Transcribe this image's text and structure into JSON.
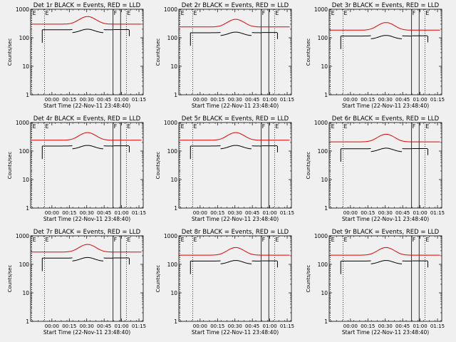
{
  "chart_data": {
    "type": "line",
    "ylabel": "Counts/sec",
    "xlabel": "Start Time (22-Nov-11 23:48:40)",
    "yscale": "log",
    "ylim": [
      1,
      1000
    ],
    "xlim_minutes": [
      -7,
      90
    ],
    "y_ticks": [
      {
        "v": 1,
        "label": "1"
      },
      {
        "v": 10,
        "label": "10"
      },
      {
        "v": 100,
        "label": "100"
      },
      {
        "v": 1000,
        "label": "1000"
      }
    ],
    "x_ticks": [
      {
        "v": 11.33,
        "label": "00:00"
      },
      {
        "v": 26.33,
        "label": "00:15"
      },
      {
        "v": 41.33,
        "label": "00:30"
      },
      {
        "v": 56.33,
        "label": "00:45"
      },
      {
        "v": 71.33,
        "label": "01:00"
      },
      {
        "v": 86.33,
        "label": "01:15"
      }
    ],
    "legend": [
      "BLACK = Events",
      "RED = LLD"
    ],
    "series_colors": {
      "events": "#000000",
      "lld": "#e00000"
    },
    "markers": [
      {
        "label": "E",
        "t": -6,
        "style": "dotted"
      },
      {
        "label": "E",
        "t": 5,
        "style": "dotted"
      },
      {
        "label": "F",
        "t": 64,
        "style": "solid"
      },
      {
        "label": "E",
        "t": 75.5,
        "style": "dotted"
      }
    ],
    "panels": [
      {
        "title": "Det 1r BLACK = Events, RED = LLD",
        "base_red": 300,
        "base_black": 190,
        "gap_end": 70.5
      },
      {
        "title": "Det 2r BLACK = Events, RED = LLD",
        "base_red": 240,
        "base_black": 150,
        "gap_end": 70.5
      },
      {
        "title": "Det 3r BLACK = Events, RED = LLD",
        "base_red": 185,
        "base_black": 115,
        "gap_end": 70.5
      },
      {
        "title": "Det 4r BLACK = Events, RED = LLD",
        "base_red": 240,
        "base_black": 150,
        "gap_end": 70.5
      },
      {
        "title": "Det 5r BLACK = Events, RED = LLD",
        "base_red": 240,
        "base_black": 150,
        "gap_end": 70.5
      },
      {
        "title": "Det 6r BLACK = Events, RED = LLD",
        "base_red": 210,
        "base_black": 120,
        "gap_end": 70.5
      },
      {
        "title": "Det 7r BLACK = Events, RED = LLD",
        "base_red": 270,
        "base_black": 165,
        "gap_end": 70.5
      },
      {
        "title": "Det 8r BLACK = Events, RED = LLD",
        "base_red": 210,
        "base_black": 130,
        "gap_end": 70.5
      },
      {
        "title": "Det 9r BLACK = Events, RED = LLD",
        "base_red": 210,
        "base_black": 130,
        "gap_end": 70.5
      }
    ]
  }
}
